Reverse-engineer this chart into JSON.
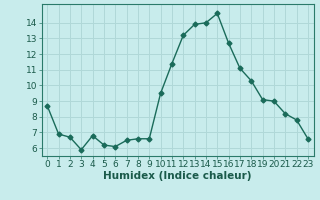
{
  "x": [
    0,
    1,
    2,
    3,
    4,
    5,
    6,
    7,
    8,
    9,
    10,
    11,
    12,
    13,
    14,
    15,
    16,
    17,
    18,
    19,
    20,
    21,
    22,
    23
  ],
  "y": [
    8.7,
    6.9,
    6.7,
    5.9,
    6.8,
    6.2,
    6.1,
    6.5,
    6.6,
    6.6,
    9.5,
    11.4,
    13.2,
    13.9,
    14.0,
    14.6,
    12.7,
    11.1,
    10.3,
    9.1,
    9.0,
    8.2,
    7.8,
    6.6
  ],
  "xlabel": "Humidex (Indice chaleur)",
  "ylim": [
    5.5,
    15.2
  ],
  "xlim": [
    -0.5,
    23.5
  ],
  "yticks": [
    6,
    7,
    8,
    9,
    10,
    11,
    12,
    13,
    14
  ],
  "xticks": [
    0,
    1,
    2,
    3,
    4,
    5,
    6,
    7,
    8,
    9,
    10,
    11,
    12,
    13,
    14,
    15,
    16,
    17,
    18,
    19,
    20,
    21,
    22,
    23
  ],
  "line_color": "#1a6b5a",
  "marker": "D",
  "marker_size": 2.5,
  "bg_color": "#c8ecec",
  "grid_color": "#b0d8d8",
  "tick_label_fontsize": 6.5,
  "xlabel_fontsize": 7.5
}
